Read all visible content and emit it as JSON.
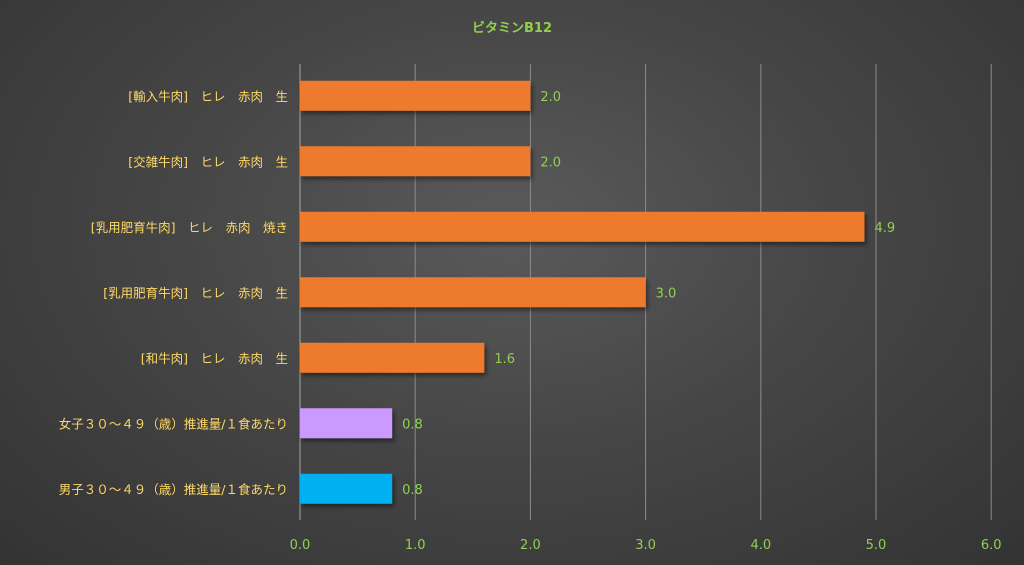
{
  "chart_data": {
    "type": "bar",
    "orientation": "horizontal",
    "title": "ビタミンB12",
    "xlabel": "",
    "ylabel": "",
    "xlim": [
      0,
      6
    ],
    "x_ticks": [
      "0.0",
      "1.0",
      "2.0",
      "3.0",
      "4.0",
      "5.0",
      "6.0"
    ],
    "grid": true,
    "legend": "none",
    "categories": [
      "[輸入牛肉]　ヒレ　赤肉　生",
      "[交雑牛肉]　ヒレ　赤肉　生",
      "[乳用肥育牛肉]　ヒレ　赤肉　焼き",
      "[乳用肥育牛肉]　ヒレ　赤肉　生",
      "[和牛肉]　ヒレ　赤肉　生",
      "女子３０～４９（歳）推進量/１食あたり",
      "男子３０～４９（歳）推進量/１食あたり"
    ],
    "values": [
      2.0,
      2.0,
      4.9,
      3.0,
      1.6,
      0.8,
      0.8
    ],
    "value_labels": [
      "2.0",
      "2.0",
      "4.9",
      "3.0",
      "1.6",
      "0.8",
      "0.8"
    ],
    "bar_colors": [
      "#ee7a2e",
      "#ee7a2e",
      "#ee7a2e",
      "#ee7a2e",
      "#ee7a2e",
      "#cc99ff",
      "#00b0f0"
    ],
    "colors": {
      "title": "#92d050",
      "category_text": "#ffd966",
      "tick_text": "#92d050",
      "value_text": "#92d050",
      "grid": "#8c8c8c",
      "axis": "#a6a6a6"
    }
  }
}
